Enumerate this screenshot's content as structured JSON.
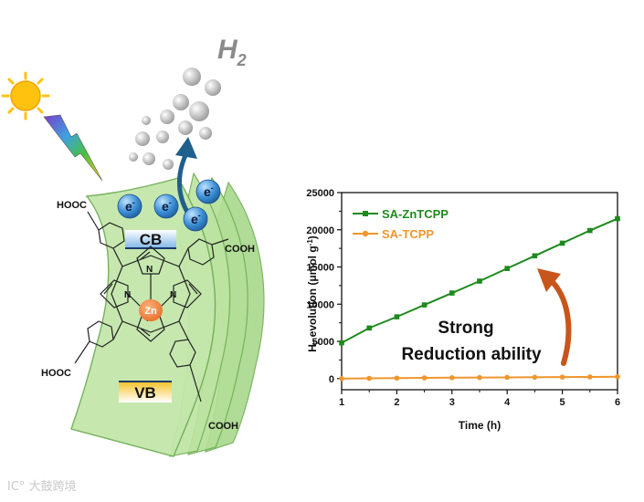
{
  "illustration": {
    "h2_label": "H",
    "h2_sub": "2",
    "electron_symbol": "e",
    "electron_charge": "-",
    "cb_label": "CB",
    "vb_label": "VB",
    "zn_label": "Zn",
    "n_atom": "N",
    "cooh_label": "COOH",
    "hooc_label": "HOOC",
    "icons": [
      "sun-icon",
      "lightning-bolt-icon",
      "electron-icon",
      "arrow-icon"
    ],
    "colors": {
      "sheet": "#b9e3a0",
      "zn": "#f08c4a",
      "electron": "#3b8fd6",
      "arrow": "#1f5f8b"
    }
  },
  "chart_data": {
    "type": "line",
    "x": [
      1,
      1.5,
      2,
      2.5,
      3,
      3.5,
      4,
      4.5,
      5,
      5.5,
      6
    ],
    "series": [
      {
        "name": "SA-ZnTCPP",
        "color": "#1e8a1e",
        "values": [
          4800,
          6800,
          8300,
          9900,
          11500,
          13100,
          14800,
          16500,
          18200,
          19900,
          21500
        ]
      },
      {
        "name": "SA-TCPP",
        "color": "#f0962d",
        "values": [
          0,
          30,
          60,
          90,
          120,
          140,
          160,
          180,
          200,
          220,
          250
        ]
      }
    ],
    "xlabel": "Time (h)",
    "ylabel_main": "H",
    "ylabel_sub": "2",
    "ylabel_rest": " evolution (μmol g",
    "ylabel_sup": "-1",
    "ylabel_close": ")",
    "xlim": [
      1,
      6
    ],
    "ylim": [
      -1500,
      25000
    ],
    "xticks": [
      "1",
      "2",
      "3",
      "4",
      "5",
      "6"
    ],
    "yticks": [
      "0",
      "5000",
      "10000",
      "15000",
      "20000",
      "25000"
    ],
    "annotation_line1": "Strong",
    "annotation_line2": "Reduction ability",
    "legend_position": "top-left"
  },
  "watermark": "IC° 大鼓跨境"
}
